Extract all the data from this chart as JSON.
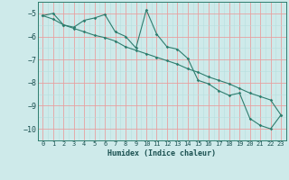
{
  "xlabel": "Humidex (Indice chaleur)",
  "ylabel": "",
  "bg_color": "#ceeaea",
  "line_color": "#2e7d6e",
  "grid_major_color": "#e8a0a0",
  "grid_minor_color": "#b8dede",
  "x_data": [
    0,
    1,
    2,
    3,
    4,
    5,
    6,
    7,
    8,
    9,
    10,
    11,
    12,
    13,
    14,
    15,
    16,
    17,
    18,
    19,
    20,
    21,
    22,
    23
  ],
  "y_main": [
    -5.1,
    -5.0,
    -5.5,
    -5.6,
    -5.3,
    -5.2,
    -5.05,
    -5.8,
    -6.0,
    -6.5,
    -4.85,
    -5.9,
    -6.45,
    -6.55,
    -6.95,
    -7.9,
    -8.05,
    -8.35,
    -8.55,
    -8.45,
    -9.55,
    -9.85,
    -10.0,
    -9.4
  ],
  "y_trend": [
    -5.1,
    -5.25,
    -5.5,
    -5.65,
    -5.8,
    -5.95,
    -6.05,
    -6.2,
    -6.45,
    -6.6,
    -6.75,
    -6.9,
    -7.05,
    -7.2,
    -7.4,
    -7.55,
    -7.75,
    -7.9,
    -8.05,
    -8.25,
    -8.45,
    -8.6,
    -8.75,
    -9.4
  ],
  "ylim": [
    -10.5,
    -4.5
  ],
  "xlim": [
    -0.5,
    23.5
  ],
  "yticks": [
    -10,
    -9,
    -8,
    -7,
    -6,
    -5
  ],
  "xticks": [
    0,
    1,
    2,
    3,
    4,
    5,
    6,
    7,
    8,
    9,
    10,
    11,
    12,
    13,
    14,
    15,
    16,
    17,
    18,
    19,
    20,
    21,
    22,
    23
  ]
}
